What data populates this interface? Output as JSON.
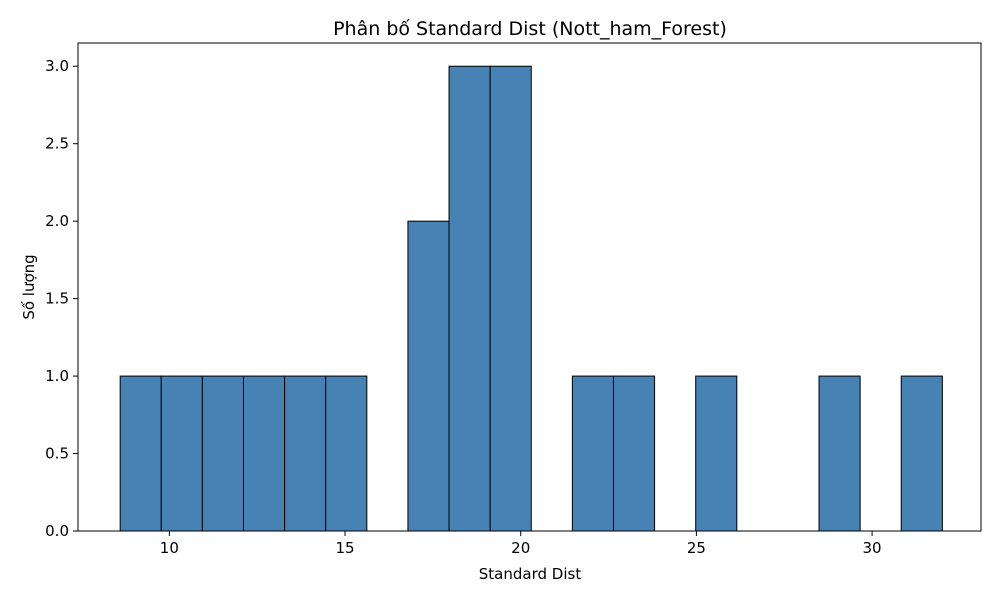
{
  "chart_data": {
    "type": "bar",
    "title": "Phân bố Standard Dist (Nott_ham_Forest)",
    "xlabel": "Standard Dist",
    "ylabel": "Số lượng",
    "xlim": [
      7.4,
      33.1
    ],
    "ylim": [
      0,
      3.15
    ],
    "xticks": [
      10,
      15,
      20,
      25,
      30
    ],
    "yticks": [
      "0.0",
      "0.5",
      "1.0",
      "1.5",
      "2.0",
      "2.5",
      "3.0"
    ],
    "bins": [
      {
        "x0": 8.6,
        "x1": 9.77,
        "count": 1
      },
      {
        "x0": 9.77,
        "x1": 10.94,
        "count": 1
      },
      {
        "x0": 10.94,
        "x1": 12.11,
        "count": 1
      },
      {
        "x0": 12.11,
        "x1": 13.28,
        "count": 1
      },
      {
        "x0": 13.28,
        "x1": 14.45,
        "count": 1
      },
      {
        "x0": 14.45,
        "x1": 15.62,
        "count": 1
      },
      {
        "x0": 15.62,
        "x1": 16.79,
        "count": 0
      },
      {
        "x0": 16.79,
        "x1": 17.96,
        "count": 2
      },
      {
        "x0": 17.96,
        "x1": 19.13,
        "count": 3
      },
      {
        "x0": 19.13,
        "x1": 20.3,
        "count": 3
      },
      {
        "x0": 20.3,
        "x1": 21.47,
        "count": 0
      },
      {
        "x0": 21.47,
        "x1": 22.64,
        "count": 1
      },
      {
        "x0": 22.64,
        "x1": 23.81,
        "count": 1
      },
      {
        "x0": 23.81,
        "x1": 24.98,
        "count": 0
      },
      {
        "x0": 24.98,
        "x1": 26.15,
        "count": 1
      },
      {
        "x0": 26.15,
        "x1": 27.32,
        "count": 0
      },
      {
        "x0": 27.32,
        "x1": 28.49,
        "count": 0
      },
      {
        "x0": 28.49,
        "x1": 29.66,
        "count": 1
      },
      {
        "x0": 29.66,
        "x1": 30.83,
        "count": 0
      },
      {
        "x0": 30.83,
        "x1": 32.0,
        "count": 1
      }
    ],
    "bar_color": "#4682b4",
    "edge_color": "#000000",
    "grid": false,
    "legend": "none"
  }
}
